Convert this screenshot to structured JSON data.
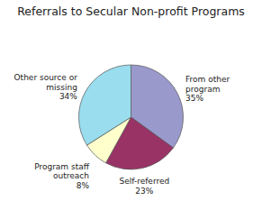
{
  "chart_data": {
    "type": "pie",
    "title": "Referrals to Secular Non-profit Programs",
    "categories": [
      "From other\nprogram",
      "Self-referred",
      "Program staff\noutreach",
      "Other source or\nmissing"
    ],
    "values": [
      35,
      23,
      8,
      34
    ],
    "value_labels": [
      "35%",
      "23%",
      "8%",
      "34%"
    ],
    "data_labels": true,
    "colors": [
      "#9999cc",
      "#993366",
      "#ffffcc",
      "#99ddee"
    ]
  }
}
